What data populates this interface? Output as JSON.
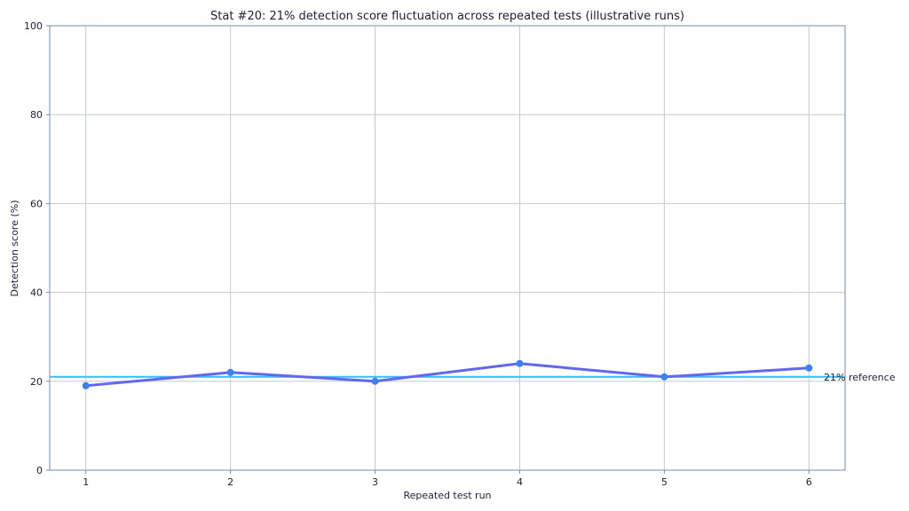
{
  "chart_data": {
    "type": "line",
    "title": "Stat #20: 21% detection score fluctuation across repeated tests (illustrative runs)",
    "xlabel": "Repeated test run",
    "ylabel": "Detection score (%)",
    "x": [
      1,
      2,
      3,
      4,
      5,
      6
    ],
    "xlim": [
      0.75,
      6.25
    ],
    "ylim": [
      0,
      100
    ],
    "yticks": [
      0,
      20,
      40,
      60,
      80,
      100
    ],
    "xticks": [
      1,
      2,
      3,
      4,
      5,
      6
    ],
    "grid": true,
    "series": [
      {
        "values": [
          19,
          22,
          20,
          24,
          21,
          23
        ],
        "color": "#6366f1",
        "marker_color": "#3b82f6"
      }
    ],
    "reference_line": {
      "value": 21,
      "label": "21% reference",
      "color": "#38bdf8"
    },
    "colors": {
      "grid": "#c3c8d4",
      "axis": "#7a8aa6",
      "text": "#1b1f3b"
    }
  }
}
